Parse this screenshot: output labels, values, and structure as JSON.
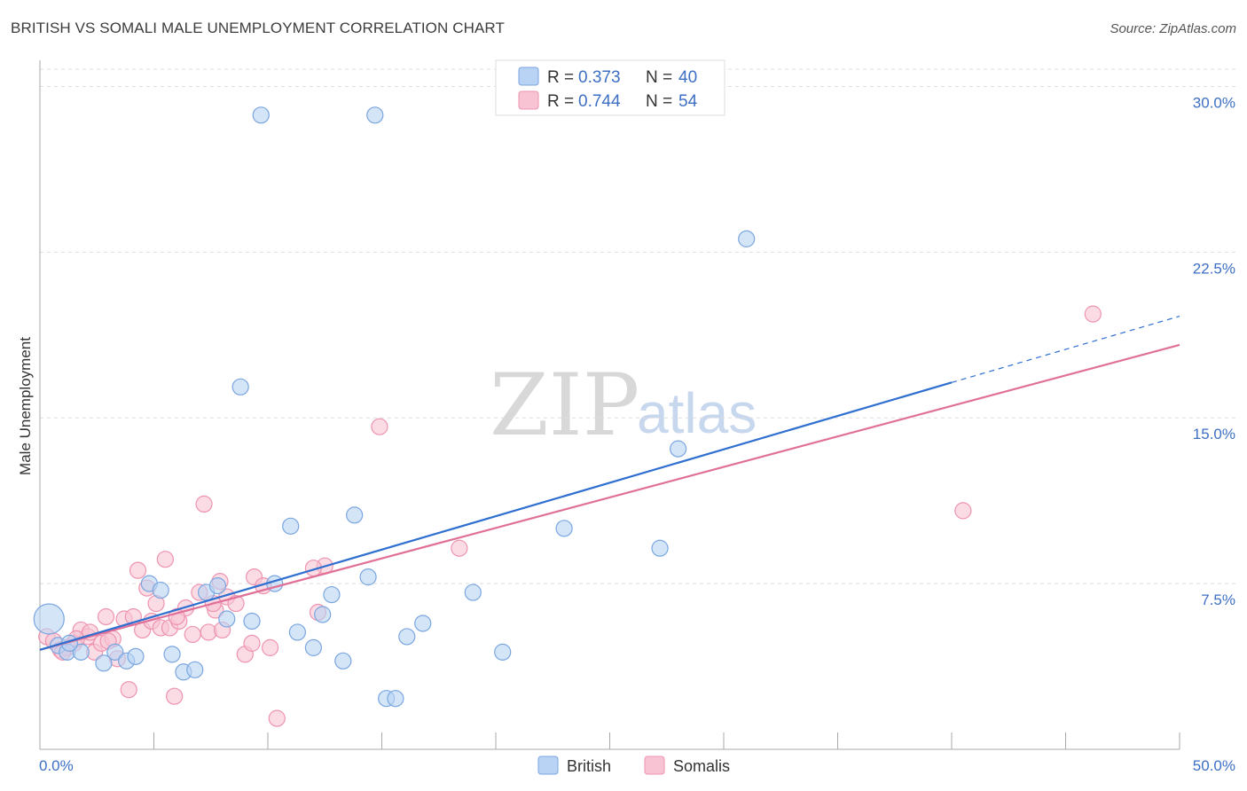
{
  "header": {
    "title": "BRITISH VS SOMALI MALE UNEMPLOYMENT CORRELATION CHART",
    "source": "Source: ZipAtlas.com"
  },
  "watermark": {
    "zip": "ZIP",
    "atlas": "atlas"
  },
  "legend": {
    "british": {
      "r_label": "R =",
      "r_value": "0.373",
      "n_label": "N =",
      "n_value": "40"
    },
    "somalis": {
      "r_label": "R =",
      "r_value": "0.744",
      "n_label": "N =",
      "n_value": "54"
    }
  },
  "bottom_legend": {
    "british": "British",
    "somalis": "Somalis"
  },
  "colors": {
    "british_fill": "#b9d3f4",
    "british_stroke": "#7aa6e0",
    "british_line": "#2f6fd0",
    "somalis_fill": "#f8c4d4",
    "somalis_stroke": "#ee93b0",
    "somalis_line": "#e07098",
    "grid": "#dddddd",
    "axis_label": "#3d6fc4"
  },
  "chart_data": {
    "type": "scatter",
    "title": "BRITISH VS SOMALI MALE UNEMPLOYMENT CORRELATION CHART",
    "xlabel": "",
    "ylabel": "Male Unemployment",
    "xlim": [
      0,
      50
    ],
    "ylim": [
      0,
      30.7
    ],
    "x_tick_labels": [
      "0.0%",
      "50.0%"
    ],
    "y_ticks": [
      7.5,
      15.0,
      22.5,
      30.0
    ],
    "y_tick_labels": [
      "7.5%",
      "15.0%",
      "22.5%",
      "30.0%"
    ],
    "grid": true,
    "legend_position": "top-center",
    "series": [
      {
        "name": "British",
        "r": 0.373,
        "n": 40,
        "trend": {
          "x": [
            0,
            40
          ],
          "y": [
            4.5,
            16.6
          ],
          "dashed_extension": {
            "x": [
              40,
              50
            ],
            "y": [
              16.6,
              19.6
            ]
          }
        },
        "points": [
          [
            0.4,
            5.9,
            "big"
          ],
          [
            0.8,
            4.7
          ],
          [
            1.2,
            4.4
          ],
          [
            1.8,
            4.4
          ],
          [
            2.8,
            3.9
          ],
          [
            3.3,
            4.4
          ],
          [
            3.8,
            4.0
          ],
          [
            4.2,
            4.2
          ],
          [
            4.8,
            7.5
          ],
          [
            5.3,
            7.2
          ],
          [
            5.8,
            4.3
          ],
          [
            6.3,
            3.5
          ],
          [
            6.8,
            3.6
          ],
          [
            7.3,
            7.1
          ],
          [
            7.8,
            7.4
          ],
          [
            8.2,
            5.9
          ],
          [
            8.8,
            16.4
          ],
          [
            9.3,
            5.8
          ],
          [
            9.7,
            28.7
          ],
          [
            10.3,
            7.5
          ],
          [
            11.0,
            10.1
          ],
          [
            11.3,
            5.3
          ],
          [
            12.0,
            4.6
          ],
          [
            12.4,
            6.1
          ],
          [
            12.8,
            7.0
          ],
          [
            13.3,
            4.0
          ],
          [
            13.8,
            10.6
          ],
          [
            14.4,
            7.8
          ],
          [
            15.2,
            2.3
          ],
          [
            15.6,
            2.3
          ],
          [
            14.7,
            28.7
          ],
          [
            16.1,
            5.1
          ],
          [
            16.8,
            5.7
          ],
          [
            19.0,
            7.1
          ],
          [
            20.3,
            4.4
          ],
          [
            23.0,
            10.0
          ],
          [
            27.2,
            9.1
          ],
          [
            28.0,
            13.6
          ],
          [
            31.0,
            23.1
          ],
          [
            1.3,
            4.8
          ]
        ]
      },
      {
        "name": "Somalis",
        "r": 0.744,
        "n": 54,
        "trend": {
          "x": [
            0,
            50
          ],
          "y": [
            4.5,
            18.3
          ]
        },
        "points": [
          [
            0.3,
            5.1
          ],
          [
            0.6,
            4.9
          ],
          [
            0.9,
            4.5
          ],
          [
            1.2,
            4.6
          ],
          [
            1.5,
            4.8
          ],
          [
            1.8,
            5.4
          ],
          [
            2.1,
            5.1
          ],
          [
            2.4,
            4.4
          ],
          [
            2.7,
            4.8
          ],
          [
            2.9,
            6.0
          ],
          [
            3.2,
            5.0
          ],
          [
            3.4,
            4.1
          ],
          [
            3.7,
            5.9
          ],
          [
            3.9,
            2.7
          ],
          [
            4.1,
            6.0
          ],
          [
            4.3,
            8.1
          ],
          [
            4.5,
            5.4
          ],
          [
            4.7,
            7.3
          ],
          [
            4.9,
            5.8
          ],
          [
            5.1,
            6.6
          ],
          [
            5.3,
            5.5
          ],
          [
            5.5,
            8.6
          ],
          [
            5.7,
            5.5
          ],
          [
            5.9,
            2.4
          ],
          [
            6.1,
            5.8
          ],
          [
            6.4,
            6.4
          ],
          [
            6.7,
            5.2
          ],
          [
            7.0,
            7.1
          ],
          [
            7.2,
            11.1
          ],
          [
            7.4,
            5.3
          ],
          [
            7.7,
            6.3
          ],
          [
            7.9,
            7.6
          ],
          [
            8.2,
            6.9
          ],
          [
            8.6,
            6.6
          ],
          [
            9.0,
            4.3
          ],
          [
            9.4,
            7.8
          ],
          [
            9.8,
            7.4
          ],
          [
            10.1,
            4.6
          ],
          [
            10.4,
            1.4
          ],
          [
            12.2,
            6.2
          ],
          [
            12.5,
            8.3
          ],
          [
            14.9,
            14.6
          ],
          [
            18.4,
            9.1
          ],
          [
            40.5,
            10.8
          ],
          [
            46.2,
            19.7
          ],
          [
            1.0,
            4.4
          ],
          [
            1.6,
            5.0
          ],
          [
            2.2,
            5.3
          ],
          [
            3.0,
            4.9
          ],
          [
            6.0,
            6.0
          ],
          [
            8.0,
            5.4
          ],
          [
            9.3,
            4.8
          ],
          [
            12.0,
            8.2
          ],
          [
            7.6,
            6.6
          ]
        ]
      }
    ]
  }
}
